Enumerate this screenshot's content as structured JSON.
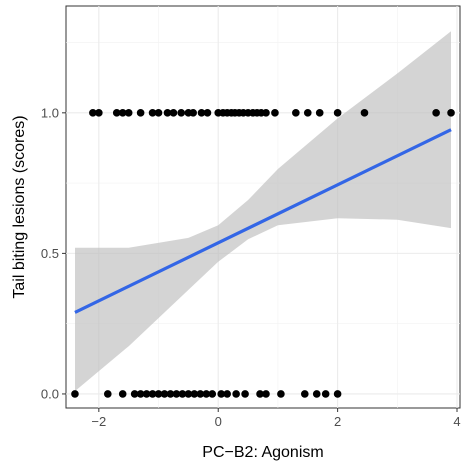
{
  "chart_data": {
    "type": "scatter",
    "title": "",
    "xlabel": "PC−B2: Agonism",
    "ylabel": "Tail biting lesions (scores)",
    "xlim": [
      -2.55,
      4.05
    ],
    "ylim": [
      -0.05,
      1.38
    ],
    "x_ticks": [
      -2,
      0,
      2,
      4
    ],
    "x_tick_labels": [
      "−2",
      "0",
      "2",
      "4"
    ],
    "y_ticks": [
      0.0,
      0.5,
      1.0
    ],
    "y_tick_labels": [
      "0.0",
      "0.5",
      "1.0"
    ],
    "grid": true,
    "legend": "none",
    "series": [
      {
        "kind": "points",
        "color": "#000000",
        "points": [
          [
            -2.1,
            1.0
          ],
          [
            -2.0,
            1.0
          ],
          [
            -1.7,
            1.0
          ],
          [
            -1.6,
            1.0
          ],
          [
            -1.5,
            1.0
          ],
          [
            -1.3,
            1.0
          ],
          [
            -1.1,
            1.0
          ],
          [
            -1.0,
            1.0
          ],
          [
            -0.85,
            1.0
          ],
          [
            -0.75,
            1.0
          ],
          [
            -0.62,
            1.0
          ],
          [
            -0.5,
            1.0
          ],
          [
            -0.42,
            1.0
          ],
          [
            -0.28,
            1.0
          ],
          [
            -0.18,
            1.0
          ],
          [
            0.0,
            1.0
          ],
          [
            0.08,
            1.0
          ],
          [
            0.15,
            1.0
          ],
          [
            0.22,
            1.0
          ],
          [
            0.28,
            1.0
          ],
          [
            0.35,
            1.0
          ],
          [
            0.42,
            1.0
          ],
          [
            0.5,
            1.0
          ],
          [
            0.58,
            1.0
          ],
          [
            0.65,
            1.0
          ],
          [
            0.72,
            1.0
          ],
          [
            0.8,
            1.0
          ],
          [
            0.95,
            1.0
          ],
          [
            1.3,
            1.0
          ],
          [
            1.5,
            1.0
          ],
          [
            1.7,
            1.0
          ],
          [
            2.0,
            1.0
          ],
          [
            2.45,
            1.0
          ],
          [
            3.65,
            1.0
          ],
          [
            3.9,
            1.0
          ],
          [
            -2.4,
            0.0
          ],
          [
            -1.85,
            0.0
          ],
          [
            -1.6,
            0.0
          ],
          [
            -1.4,
            0.0
          ],
          [
            -1.3,
            0.0
          ],
          [
            -1.2,
            0.0
          ],
          [
            -1.1,
            0.0
          ],
          [
            -1.0,
            0.0
          ],
          [
            -0.9,
            0.0
          ],
          [
            -0.8,
            0.0
          ],
          [
            -0.7,
            0.0
          ],
          [
            -0.6,
            0.0
          ],
          [
            -0.5,
            0.0
          ],
          [
            -0.4,
            0.0
          ],
          [
            -0.3,
            0.0
          ],
          [
            -0.2,
            0.0
          ],
          [
            -0.1,
            0.0
          ],
          [
            0.05,
            0.0
          ],
          [
            0.15,
            0.0
          ],
          [
            0.3,
            0.0
          ],
          [
            0.45,
            0.0
          ],
          [
            0.7,
            0.0
          ],
          [
            0.8,
            0.0
          ],
          [
            1.05,
            0.0
          ],
          [
            1.45,
            0.0
          ],
          [
            1.65,
            0.0
          ],
          [
            1.8,
            0.0
          ],
          [
            2.0,
            0.0
          ]
        ]
      },
      {
        "kind": "regression-line",
        "color": "#3366e6",
        "x": [
          -2.4,
          3.9
        ],
        "y": [
          0.29,
          0.94
        ]
      },
      {
        "kind": "confidence-band",
        "color": "#bdbdbd",
        "x": [
          -2.4,
          -1.5,
          -0.5,
          0.0,
          0.5,
          1.0,
          2.0,
          3.0,
          3.9
        ],
        "lower": [
          0.01,
          0.17,
          0.37,
          0.47,
          0.55,
          0.6,
          0.625,
          0.62,
          0.59
        ],
        "upper": [
          0.52,
          0.52,
          0.555,
          0.6,
          0.69,
          0.8,
          0.98,
          1.14,
          1.29
        ]
      }
    ]
  }
}
